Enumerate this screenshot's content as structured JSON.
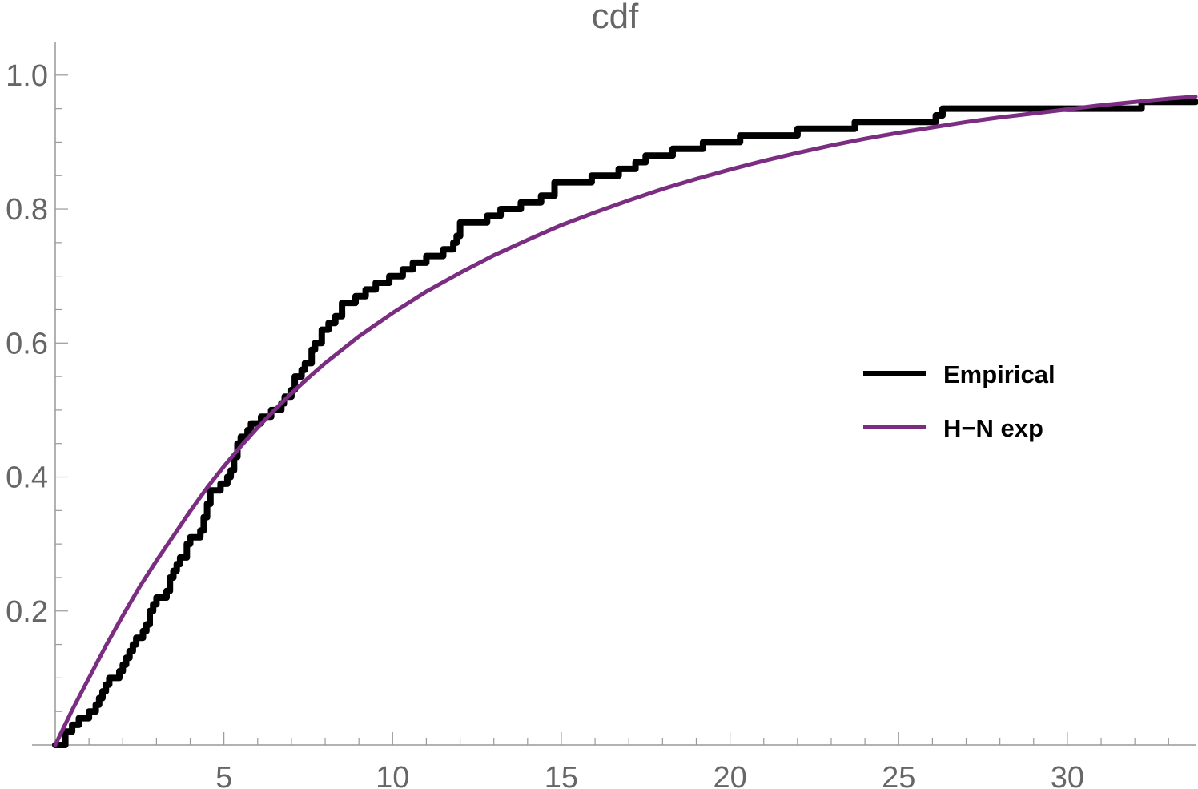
{
  "chart_data": {
    "type": "line",
    "title": "cdf",
    "xlabel": "",
    "ylabel": "",
    "xlim": [
      0,
      33.8
    ],
    "ylim": [
      0,
      1.05
    ],
    "x_ticks": [
      "5",
      "10",
      "15",
      "20",
      "25",
      "30"
    ],
    "y_ticks": [
      "0.2",
      "0.4",
      "0.6",
      "0.8",
      "1.0"
    ],
    "grid": false,
    "legend_position": "right",
    "series": [
      {
        "name": "Empirical",
        "kind": "step",
        "color": "#000000",
        "x": [
          0,
          0.3,
          0.5,
          0.7,
          1.0,
          1.2,
          1.3,
          1.4,
          1.5,
          1.6,
          1.7,
          1.9,
          2.0,
          2.1,
          2.2,
          2.3,
          2.4,
          2.6,
          2.7,
          2.8,
          2.9,
          3.0,
          3.3,
          3.4,
          3.5,
          3.6,
          3.7,
          3.9,
          4.0,
          4.3,
          4.4,
          4.5,
          4.6,
          4.9,
          5.1,
          5.2,
          5.3,
          5.4,
          5.5,
          5.7,
          5.8,
          6.1,
          6.4,
          6.7,
          6.8,
          7.0,
          7.1,
          7.3,
          7.4,
          7.6,
          7.7,
          7.9,
          8.1,
          8.3,
          8.5,
          8.7,
          8.9,
          9.2,
          9.5,
          9.9,
          10.3,
          10.6,
          11.0,
          11.5,
          11.8,
          11.9,
          12.0,
          12.3,
          12.8,
          13.2,
          13.8,
          14.4,
          14.8,
          15.9,
          16.7,
          17.2,
          17.5,
          18.3,
          19.2,
          20.3,
          22.0,
          23.7,
          26.1,
          26.3,
          32.2,
          33.8
        ],
        "y": [
          0,
          0.02,
          0.03,
          0.04,
          0.05,
          0.06,
          0.07,
          0.08,
          0.09,
          0.1,
          0.1,
          0.11,
          0.12,
          0.13,
          0.14,
          0.15,
          0.16,
          0.17,
          0.18,
          0.2,
          0.21,
          0.22,
          0.23,
          0.25,
          0.26,
          0.27,
          0.28,
          0.3,
          0.31,
          0.32,
          0.34,
          0.36,
          0.38,
          0.39,
          0.4,
          0.41,
          0.43,
          0.45,
          0.46,
          0.47,
          0.48,
          0.49,
          0.5,
          0.51,
          0.52,
          0.53,
          0.55,
          0.56,
          0.57,
          0.59,
          0.6,
          0.62,
          0.63,
          0.64,
          0.66,
          0.66,
          0.67,
          0.68,
          0.69,
          0.7,
          0.71,
          0.72,
          0.73,
          0.74,
          0.75,
          0.76,
          0.78,
          0.78,
          0.79,
          0.8,
          0.81,
          0.82,
          0.84,
          0.85,
          0.86,
          0.87,
          0.88,
          0.89,
          0.9,
          0.91,
          0.92,
          0.93,
          0.94,
          0.95,
          0.96,
          0.96
        ]
      },
      {
        "name": "H−N exp",
        "kind": "line",
        "color": "#7b2d82",
        "x": [
          0,
          0.5,
          1,
          1.5,
          2,
          2.5,
          3,
          3.5,
          4,
          4.5,
          5,
          5.5,
          6,
          6.5,
          7,
          7.5,
          8,
          9,
          10,
          11,
          12,
          13,
          14,
          15,
          16,
          17,
          18,
          19,
          20,
          21,
          22,
          23,
          24,
          25,
          26,
          27,
          28,
          29,
          30,
          31,
          32,
          33,
          33.8
        ],
        "y": [
          0,
          0.052,
          0.1,
          0.148,
          0.193,
          0.236,
          0.275,
          0.312,
          0.349,
          0.384,
          0.416,
          0.446,
          0.474,
          0.5,
          0.525,
          0.548,
          0.57,
          0.61,
          0.645,
          0.677,
          0.705,
          0.731,
          0.754,
          0.776,
          0.795,
          0.813,
          0.83,
          0.845,
          0.859,
          0.872,
          0.884,
          0.895,
          0.905,
          0.914,
          0.922,
          0.93,
          0.937,
          0.943,
          0.949,
          0.955,
          0.96,
          0.965,
          0.968
        ]
      }
    ]
  }
}
